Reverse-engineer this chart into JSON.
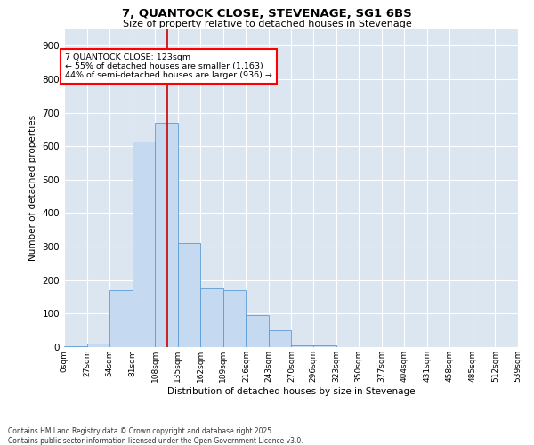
{
  "title": "7, QUANTOCK CLOSE, STEVENAGE, SG1 6BS",
  "subtitle": "Size of property relative to detached houses in Stevenage",
  "xlabel": "Distribution of detached houses by size in Stevenage",
  "ylabel": "Number of detached properties",
  "annotation_title": "7 QUANTOCK CLOSE: 123sqm",
  "annotation_line1": "← 55% of detached houses are smaller (1,163)",
  "annotation_line2": "44% of semi-detached houses are larger (936) →",
  "property_size": 123,
  "bin_edges": [
    0,
    27,
    54,
    81,
    108,
    135,
    162,
    189,
    216,
    243,
    270,
    296,
    323,
    350,
    377,
    404,
    431,
    458,
    485,
    512,
    539
  ],
  "bin_counts": [
    3,
    10,
    170,
    615,
    670,
    310,
    175,
    170,
    95,
    50,
    5,
    5,
    0,
    0,
    0,
    0,
    0,
    0,
    0,
    0
  ],
  "bar_color": "#c5d9f1",
  "bar_edge_color": "#5b9bd5",
  "vline_color": "#cc0000",
  "background_color": "#ffffff",
  "plot_bg_color": "#dce6f1",
  "grid_color": "#ffffff",
  "ylim_max": 950,
  "yticks": [
    0,
    100,
    200,
    300,
    400,
    500,
    600,
    700,
    800,
    900
  ],
  "footer_line1": "Contains HM Land Registry data © Crown copyright and database right 2025.",
  "footer_line2": "Contains public sector information licensed under the Open Government Licence v3.0."
}
